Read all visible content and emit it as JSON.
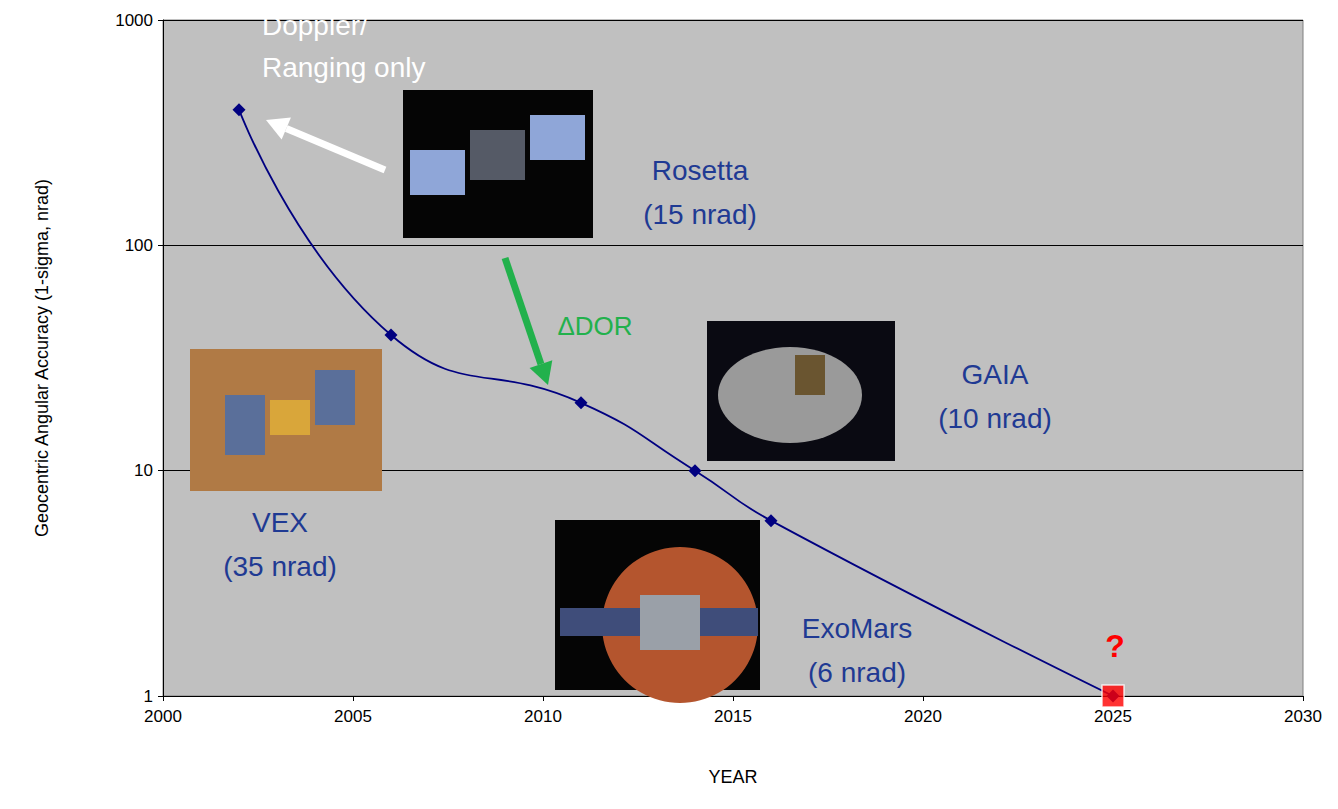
{
  "chart_data": {
    "type": "line",
    "xlabel": "YEAR",
    "ylabel": "Geocentric Angular Accuracy (1-sigma, nrad)",
    "x": [
      2002,
      2006,
      2011,
      2014,
      2016,
      2025
    ],
    "series": [
      {
        "values": [
          400,
          40,
          20,
          10,
          6,
          1
        ],
        "color": "#000080",
        "marker": "diamond",
        "line_style": "smooth"
      },
      {
        "type": "scatter",
        "values": [
          null,
          null,
          null,
          null,
          null,
          1
        ],
        "color": "#ff0000",
        "marker": "square"
      }
    ],
    "xlim": [
      2000,
      2030
    ],
    "xticks": [
      2000,
      2005,
      2010,
      2015,
      2020,
      2025,
      2030
    ],
    "ylim": [
      1,
      1000
    ],
    "yticks": [
      1,
      10,
      100,
      1000
    ],
    "log": "y",
    "grid": true,
    "annotations": [
      {
        "text": "Doppler/\nRanging only",
        "color": "#ffffff"
      },
      {
        "text": "Rosetta\n(15 nrad)",
        "color": "#1f3a93"
      },
      {
        "text": "ΔDOR",
        "color": "#22b14c"
      },
      {
        "text": "GAIA\n(10 nrad)",
        "color": "#1f3a93"
      },
      {
        "text": "VEX\n(35 nrad)",
        "color": "#1f3a93"
      },
      {
        "text": "ExoMars\n(6 nrad)",
        "color": "#1f3a93"
      },
      {
        "text": "?",
        "color": "#ff0000"
      }
    ]
  }
}
